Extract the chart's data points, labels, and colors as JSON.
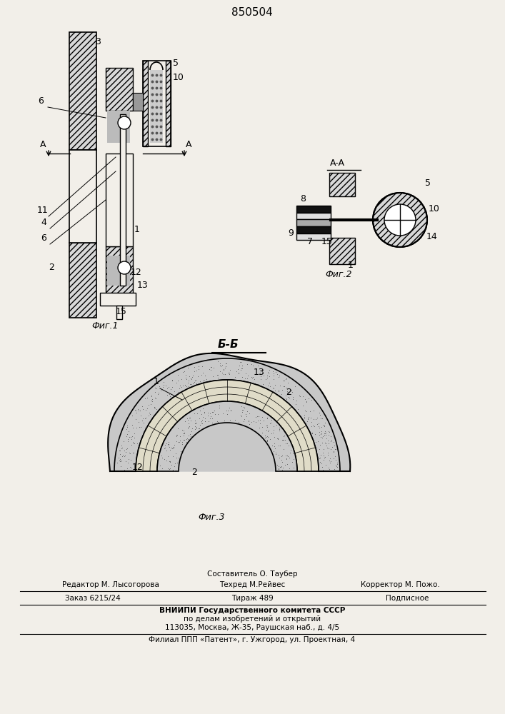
{
  "patent_number": "850504",
  "background_color": "#f2efe9",
  "fig1_caption": "Фиг.1",
  "fig2_caption": "Фиг.2",
  "fig3_caption": "Фиг.3",
  "section_label": "Б-Б",
  "section_aa": "A-A",
  "footer_line1": "Составитель О. Таубер",
  "footer_line2_left": "Редактор М. Лысогорова",
  "footer_line2_mid": "Техред М.Рейвес",
  "footer_line2_right": "Корректор М. Пожо.",
  "footer_line3_left": "Заказ 6215/24",
  "footer_line3_mid": "Тираж 489",
  "footer_line3_right": "Подписное",
  "footer_line4": "ВНИИПИ Государственного комитета СССР",
  "footer_line5": "по делам изобретений и открытий",
  "footer_line6": "113035, Москва, Ж-35, Раушская наб., д. 4/5",
  "footer_line7": "Филиал ППП «Патент», г. Ужгород, ул. Проектная, 4"
}
